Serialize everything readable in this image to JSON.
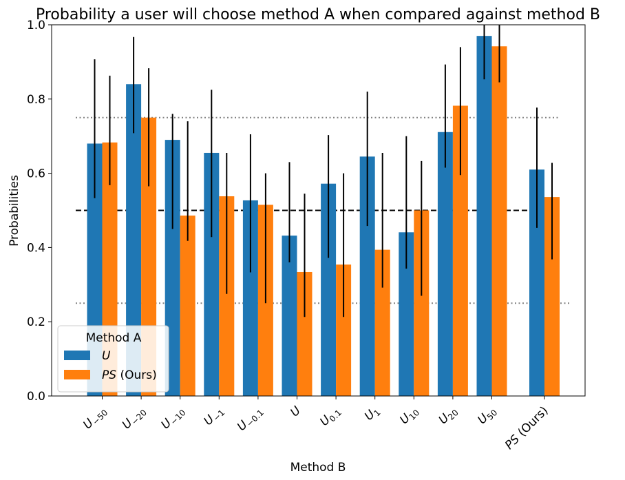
{
  "chart_data": {
    "type": "bar",
    "title": "Probability a user will choose method A when compared against method B",
    "xlabel": "Method B",
    "ylabel": "Probabilities",
    "ylim": [
      0,
      1.0
    ],
    "yticks": [
      "0.0",
      "0.2",
      "0.4",
      "0.6",
      "0.8",
      "1.0"
    ],
    "categories": [
      {
        "base": "U",
        "sub": "−50",
        "italic": true
      },
      {
        "base": "U",
        "sub": "−20",
        "italic": true
      },
      {
        "base": "U",
        "sub": "−10",
        "italic": true
      },
      {
        "base": "U",
        "sub": "−1",
        "italic": true
      },
      {
        "base": "U",
        "sub": "−0.1",
        "italic": true
      },
      {
        "base": "U",
        "sub": "",
        "italic": true
      },
      {
        "base": "U",
        "sub": "0.1",
        "italic": true
      },
      {
        "base": "U",
        "sub": "1",
        "italic": true
      },
      {
        "base": "U",
        "sub": "10",
        "italic": true
      },
      {
        "base": "U",
        "sub": "20",
        "italic": true
      },
      {
        "base": "U",
        "sub": "50",
        "italic": true
      },
      {
        "base": "PS",
        "sub": "",
        "italic": true,
        "suffix": " (Ours)"
      }
    ],
    "series": [
      {
        "name": "U",
        "color": "#1f77b4",
        "values": [
          0.68,
          0.84,
          0.69,
          0.655,
          0.527,
          0.432,
          0.572,
          0.645,
          0.441,
          0.711,
          0.97,
          0.61
        ],
        "err_low": [
          0.533,
          0.708,
          0.45,
          0.428,
          0.333,
          0.36,
          0.372,
          0.458,
          0.343,
          0.615,
          0.853,
          0.453
        ],
        "err_high": [
          0.907,
          0.967,
          0.76,
          0.825,
          0.705,
          0.63,
          0.703,
          0.82,
          0.7,
          0.893,
          1.0,
          0.777
        ]
      },
      {
        "name": "PS (Ours)",
        "color": "#ff7f0e",
        "values": [
          0.683,
          0.75,
          0.486,
          0.538,
          0.515,
          0.334,
          0.354,
          0.394,
          0.5,
          0.782,
          0.942,
          0.536
        ],
        "err_low": [
          0.568,
          0.565,
          0.418,
          0.275,
          0.25,
          0.213,
          0.213,
          0.292,
          0.27,
          0.595,
          0.845,
          0.368
        ],
        "err_high": [
          0.863,
          0.883,
          0.74,
          0.655,
          0.6,
          0.545,
          0.6,
          0.655,
          0.633,
          0.94,
          1.0,
          0.628
        ]
      }
    ],
    "reference_lines": [
      {
        "value": 0.5,
        "style": "dashed",
        "color": "#000000"
      },
      {
        "value": 0.75,
        "style": "dotted",
        "color": "#808080"
      },
      {
        "value": 0.25,
        "style": "dotted",
        "color": "#808080"
      }
    ],
    "legend": {
      "title": "Method A",
      "placement": "lower-left",
      "entries": [
        {
          "base": "U",
          "suffix": ""
        },
        {
          "base": "PS",
          "suffix": " (Ours)"
        }
      ]
    },
    "grid": false
  }
}
